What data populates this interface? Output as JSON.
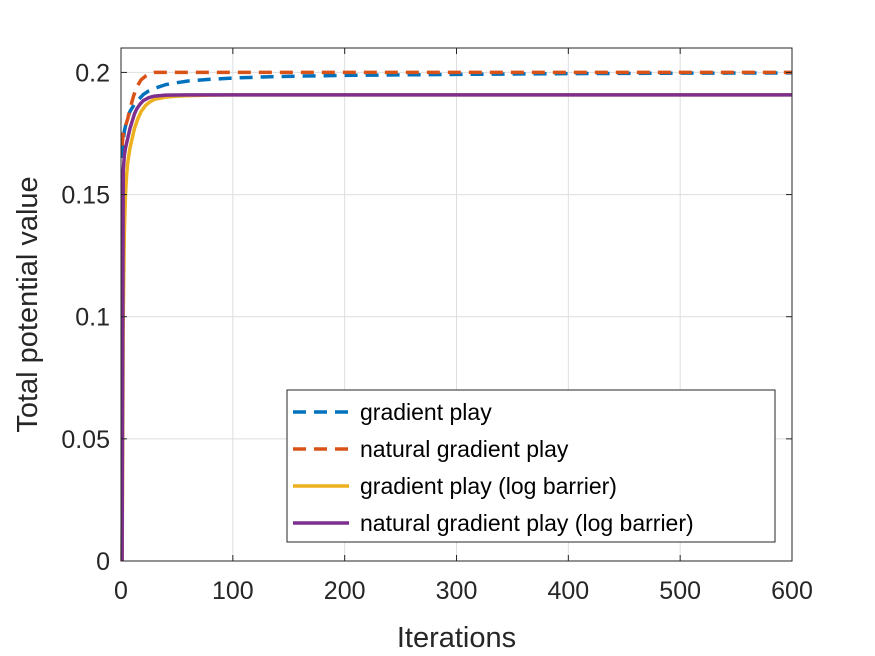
{
  "chart_data": {
    "type": "line",
    "title": "",
    "xlabel": "Iterations",
    "ylabel": "Total potential value",
    "xlim": [
      0,
      600
    ],
    "ylim": [
      0,
      0.21
    ],
    "xticks": [
      0,
      100,
      200,
      300,
      400,
      500,
      600
    ],
    "xtick_labels": [
      "0",
      "100",
      "200",
      "300",
      "400",
      "500",
      "600"
    ],
    "yticks": [
      0,
      0.05,
      0.1,
      0.15,
      0.2
    ],
    "ytick_labels": [
      "0",
      "0.05",
      "0.1",
      "0.15",
      "0.2"
    ],
    "grid": true,
    "legend_position": "bottom-right",
    "series": [
      {
        "name": "gradient play",
        "color": "#0072BD",
        "dash": "dashed",
        "x": [
          1,
          2,
          3,
          5,
          8,
          12,
          16,
          20,
          25,
          30,
          40,
          50,
          60,
          80,
          100,
          130,
          160,
          200,
          250,
          300,
          400,
          500,
          600
        ],
        "y": [
          0.165,
          0.172,
          0.176,
          0.18,
          0.184,
          0.187,
          0.189,
          0.191,
          0.1925,
          0.1935,
          0.195,
          0.1958,
          0.1965,
          0.1972,
          0.1977,
          0.1982,
          0.1985,
          0.1988,
          0.199,
          0.1992,
          0.1995,
          0.1997,
          0.1998
        ]
      },
      {
        "name": "natural gradient play",
        "color": "#D95319",
        "dash": "dashed",
        "x": [
          1,
          2,
          4,
          6,
          8,
          11,
          14,
          18,
          22,
          26,
          30,
          40,
          60,
          100,
          200,
          300,
          400,
          500,
          600
        ],
        "y": [
          0.17,
          0.175,
          0.178,
          0.181,
          0.185,
          0.19,
          0.194,
          0.197,
          0.1985,
          0.1995,
          0.2,
          0.2,
          0.2,
          0.2,
          0.2,
          0.2,
          0.2,
          0.2,
          0.2
        ]
      },
      {
        "name": "gradient play (log barrier)",
        "color": "#EDB120",
        "dash": "solid",
        "x": [
          1,
          2,
          3,
          4,
          5,
          6,
          8,
          10,
          12,
          15,
          18,
          22,
          26,
          30,
          40,
          50,
          60,
          80,
          100,
          200,
          300,
          400,
          500,
          600
        ],
        "y": [
          0.0,
          0.1,
          0.135,
          0.15,
          0.158,
          0.163,
          0.169,
          0.173,
          0.177,
          0.181,
          0.184,
          0.1865,
          0.188,
          0.189,
          0.1899,
          0.1903,
          0.1905,
          0.1907,
          0.1908,
          0.1908,
          0.1908,
          0.1908,
          0.1908,
          0.1908
        ]
      },
      {
        "name": "natural gradient play (log barrier)",
        "color": "#7E2F8E",
        "dash": "solid",
        "x": [
          1,
          2,
          3,
          4,
          6,
          8,
          10,
          12,
          14,
          17,
          20,
          25,
          30,
          40,
          60,
          100,
          200,
          300,
          400,
          500,
          600
        ],
        "y": [
          0.0,
          0.16,
          0.166,
          0.169,
          0.173,
          0.177,
          0.18,
          0.183,
          0.185,
          0.187,
          0.1885,
          0.1897,
          0.1903,
          0.1907,
          0.1908,
          0.1908,
          0.1908,
          0.1908,
          0.1908,
          0.1908,
          0.1908
        ]
      }
    ]
  }
}
